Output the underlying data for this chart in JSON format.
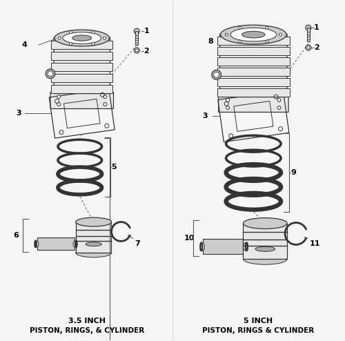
{
  "background_color": "#f5f5f5",
  "fig_width": 5.0,
  "fig_height": 4.94,
  "dpi": 100,
  "left_title_line1": "3.5 INCH",
  "left_title_line2": "PISTON, RINGS, & CYLINDER",
  "right_title_line1": "5 INCH",
  "right_title_line2": "PISTON, RINGS & CYLINDER",
  "line_color": "#555555",
  "edge_color": "#333333",
  "fill_light": "#e8e8e8",
  "fill_mid": "#cccccc",
  "fill_dark": "#aaaaaa"
}
